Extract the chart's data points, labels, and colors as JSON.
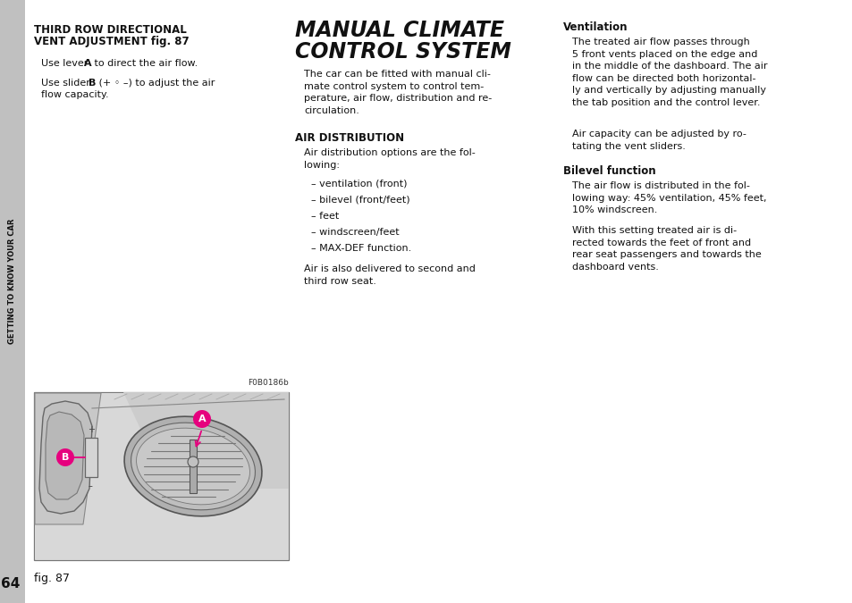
{
  "page_bg": "#ffffff",
  "sidebar_bg": "#c0c0c0",
  "sidebar_text": "GETTING TO KNOW YOUR CAR",
  "sidebar_page_num": "64",
  "col1_heading1": "THIRD ROW DIRECTIONAL",
  "col1_heading2": "VENT ADJUSTMENT fig. 87",
  "col1_line1a": "Use lever ",
  "col1_line1b": "A",
  "col1_line1c": " to direct the air flow.",
  "col1_line2a": "Use slider ",
  "col1_line2b": "B",
  "col1_line2c": " (+ ◦ –) to adjust the air",
  "col1_line2d": "flow capacity.",
  "main_title1": "MANUAL CLIMATE",
  "main_title2": "CONTROL SYSTEM",
  "main_intro": "The car can be fitted with manual cli-\nmate control system to control tem-\nperature, air flow, distribution and re-\ncirculation.",
  "sub_heading1": "AIR DISTRIBUTION",
  "air_dist_intro": "Air distribution options are the fol-\nlowing:",
  "air_dist_items": [
    "– ventilation (front)",
    "– bilevel (front/feet)",
    "– feet",
    "– windscreen/feet",
    "– MAX-DEF function."
  ],
  "air_dist_footer": "Air is also delivered to second and\nthird row seat.",
  "col3_sub1": "Ventilation",
  "col3_body1": "The treated air flow passes through\n5 front vents placed on the edge and\nin the middle of the dashboard. The air\nflow can be directed both horizontal-\nly and vertically by adjusting manually\nthe tab position and the control lever.",
  "col3_body1b": "Air capacity can be adjusted by ro-\ntating the vent sliders.",
  "col3_sub2": "Bilevel function",
  "col3_body2": "The air flow is distributed in the fol-\nlowing way: 45% ventilation, 45% feet,\n10% windscreen.",
  "col3_body2b": "With this setting treated air is di-\nrected towards the feet of front and\nrear seat passengers and towards the\ndashboard vents.",
  "fig_label": "F0B0186b",
  "fig_caption": "fig. 87",
  "accent_color": "#e6007e"
}
